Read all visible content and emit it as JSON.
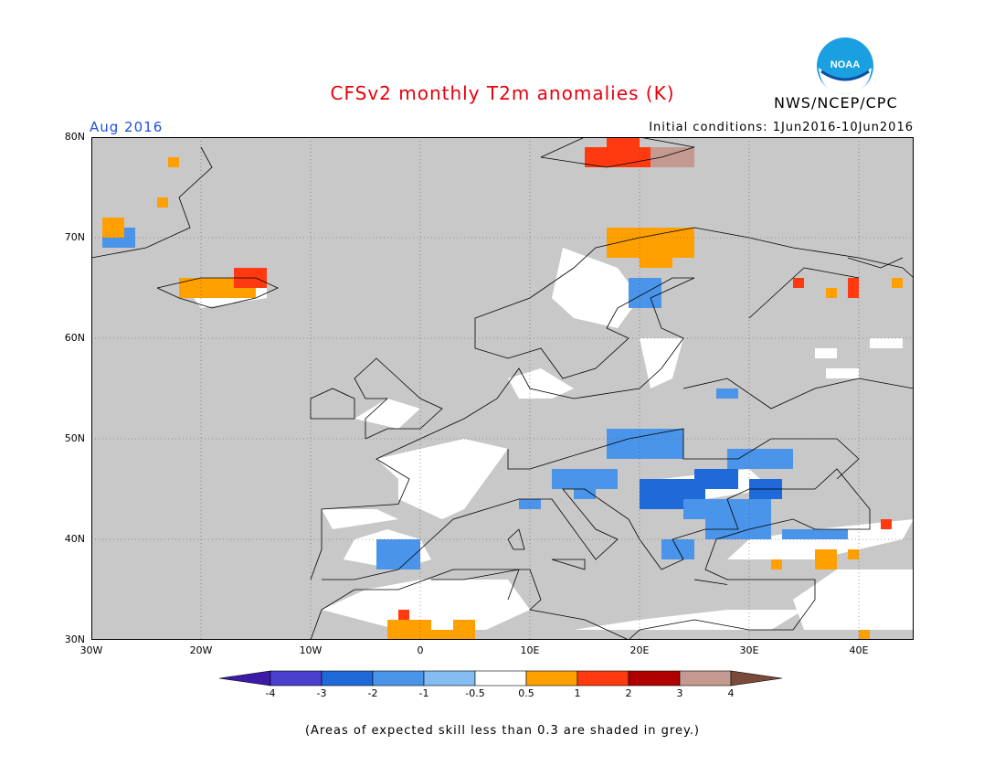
{
  "header": {
    "title": "CFSv2 monthly T2m anomalies (K)",
    "period": "Aug 2016",
    "initial_conditions": "Initial conditions: 1Jun2016-10Jun2016",
    "agency": "NWS/NCEP/CPC",
    "logo_text": "NOAA"
  },
  "map": {
    "lat_labels": [
      "80N",
      "70N",
      "60N",
      "50N",
      "40N",
      "30N"
    ],
    "lon_labels": [
      "30W",
      "20W",
      "10W",
      "0",
      "10E",
      "20E",
      "30E",
      "40E"
    ],
    "skill_mask_color": "#c8c8c8",
    "coastline_color": "#000000"
  },
  "colorbar": {
    "labels": [
      "-4",
      "-3",
      "-2",
      "-1",
      "-0.5",
      "0.5",
      "1",
      "2",
      "3",
      "4"
    ],
    "colors": [
      "#3b1aa8",
      "#4b3fd0",
      "#1f6ad8",
      "#4a95ea",
      "#84bdf2",
      "#ffffff",
      "#ffa000",
      "#ff3a10",
      "#b00000",
      "#c49a90",
      "#7a4a3a"
    ]
  },
  "footnote": "(Areas of expected skill less than 0.3 are shaded in grey.)"
}
